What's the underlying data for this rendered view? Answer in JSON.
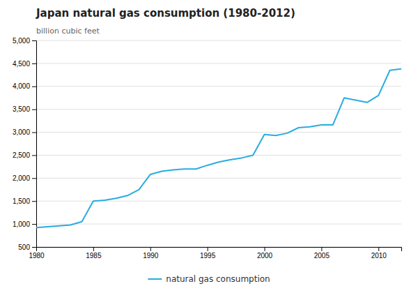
{
  "chart_data": {
    "type": "line",
    "title": "Japan natural gas consumption (1980-2012)",
    "ylabel": "billion cubic feet",
    "x": [
      1980,
      1981,
      1982,
      1983,
      1984,
      1985,
      1986,
      1987,
      1988,
      1989,
      1990,
      1991,
      1992,
      1993,
      1994,
      1995,
      1996,
      1997,
      1998,
      1999,
      2000,
      2001,
      2002,
      2003,
      2004,
      2005,
      2006,
      2007,
      2008,
      2009,
      2010,
      2011,
      2012
    ],
    "series": [
      {
        "name": "natural gas consumption",
        "color": "#29abe2",
        "values": [
          920,
          940,
          960,
          980,
          1050,
          1500,
          1520,
          1560,
          1620,
          1750,
          2080,
          2150,
          2180,
          2200,
          2200,
          2280,
          2350,
          2400,
          2440,
          2500,
          2950,
          2930,
          2980,
          3100,
          3120,
          3160,
          3160,
          3750,
          3700,
          3650,
          3800,
          4350,
          4380
        ]
      }
    ],
    "xlim": [
      1980,
      2012
    ],
    "xticks": [
      1980,
      1985,
      1990,
      1995,
      2000,
      2005,
      2010
    ],
    "ylim": [
      500,
      5000
    ],
    "yticks": [
      500,
      {
        "value": 1000,
        "label": "1,000"
      },
      {
        "value": 1500,
        "label": "1,500"
      },
      {
        "value": 2000,
        "label": "2,000"
      },
      {
        "value": 2500,
        "label": "2,500"
      },
      {
        "value": 3000,
        "label": "3,000"
      },
      {
        "value": 3500,
        "label": "3,500"
      },
      {
        "value": 4000,
        "label": "4,000"
      },
      {
        "value": 4500,
        "label": "4,500"
      },
      {
        "value": 5000,
        "label": "5,000"
      }
    ],
    "grid": true,
    "legend": "bottom"
  }
}
